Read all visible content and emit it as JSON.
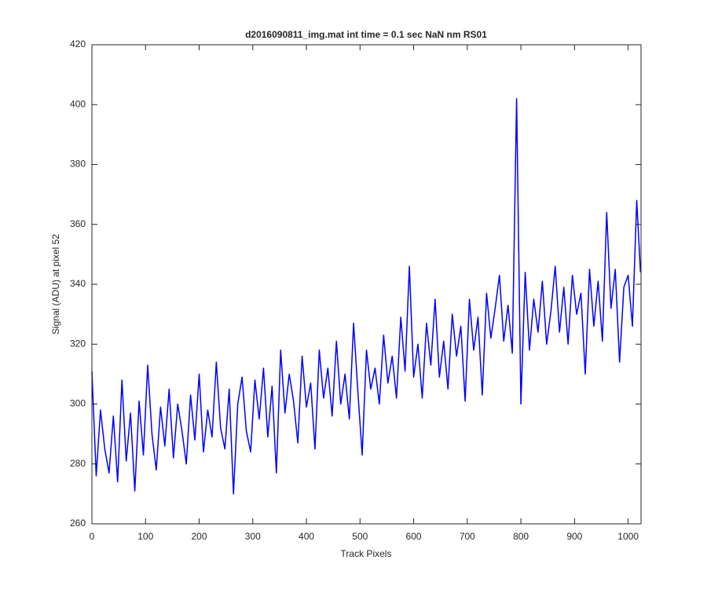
{
  "chart_data": {
    "type": "line",
    "title": "d2016090811_img.mat int time = 0.1 sec  NaN nm RS01",
    "x_label": "Track Pixels",
    "y_label": "Signal (ADU) at pixel 52",
    "xlim": [
      0,
      1024
    ],
    "ylim": [
      260,
      420
    ],
    "xticks": [
      0,
      100,
      200,
      300,
      400,
      500,
      600,
      700,
      800,
      900,
      1000
    ],
    "yticks": [
      260,
      280,
      300,
      320,
      340,
      360,
      380,
      400,
      420
    ],
    "x": [
      0,
      8,
      16,
      24,
      32,
      40,
      48,
      56,
      64,
      72,
      80,
      88,
      96,
      104,
      112,
      120,
      128,
      136,
      144,
      152,
      160,
      168,
      176,
      184,
      192,
      200,
      208,
      216,
      224,
      232,
      240,
      248,
      256,
      264,
      272,
      280,
      288,
      296,
      304,
      312,
      320,
      328,
      336,
      344,
      352,
      360,
      368,
      376,
      384,
      392,
      400,
      408,
      416,
      424,
      432,
      440,
      448,
      456,
      464,
      472,
      480,
      488,
      496,
      504,
      512,
      520,
      528,
      536,
      544,
      552,
      560,
      568,
      576,
      584,
      592,
      600,
      608,
      616,
      624,
      632,
      640,
      648,
      656,
      664,
      672,
      680,
      688,
      696,
      704,
      712,
      720,
      728,
      736,
      744,
      752,
      760,
      768,
      776,
      784,
      792,
      800,
      808,
      816,
      824,
      832,
      840,
      848,
      856,
      864,
      872,
      880,
      888,
      896,
      904,
      912,
      920,
      928,
      936,
      944,
      952,
      960,
      968,
      976,
      984,
      992,
      1000,
      1008,
      1016,
      1023
    ],
    "series": [
      {
        "name": "Signal",
        "color": "#0000ff",
        "values": [
          311,
          276,
          298,
          285,
          277,
          296,
          274,
          308,
          281,
          297,
          271,
          301,
          283,
          313,
          290,
          278,
          299,
          286,
          305,
          282,
          300,
          291,
          280,
          303,
          288,
          310,
          284,
          298,
          289,
          314,
          292,
          285,
          305,
          270,
          300,
          309,
          291,
          284,
          308,
          295,
          312,
          289,
          306,
          277,
          318,
          297,
          310,
          301,
          287,
          316,
          299,
          307,
          285,
          318,
          302,
          312,
          296,
          321,
          300,
          310,
          295,
          327,
          304,
          283,
          318,
          305,
          312,
          300,
          323,
          307,
          316,
          302,
          329,
          311,
          346,
          309,
          320,
          302,
          327,
          313,
          335,
          309,
          321,
          305,
          330,
          316,
          326,
          301,
          335,
          318,
          329,
          303,
          337,
          322,
          332,
          343,
          321,
          333,
          317,
          402,
          300,
          344,
          318,
          335,
          324,
          341,
          320,
          331,
          346,
          324,
          339,
          320,
          343,
          330,
          337,
          310,
          345,
          326,
          341,
          321,
          364,
          332,
          345,
          314,
          339,
          343,
          326,
          368,
          344
        ]
      }
    ]
  }
}
